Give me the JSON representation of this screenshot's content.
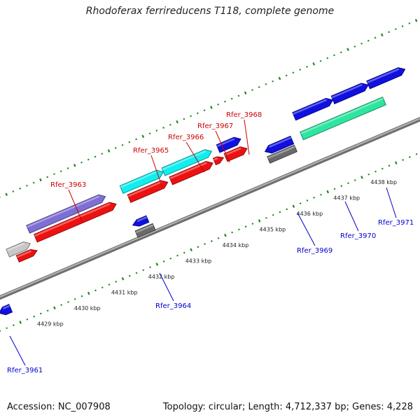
{
  "title": "Rhodoferax ferrireducens T118, complete genome",
  "footer": {
    "accession": "Accession: NC_007908",
    "info": "Topology: circular; Length: 4,712,337 bp; Genes: 4,228"
  },
  "colors": {
    "backbone": "#8a8a8a",
    "ticks": "#1a8a1a",
    "plus_label": "#cc0000",
    "minus_label": "#0000cc",
    "blue": "#1010e0",
    "red": "#ee1111",
    "cyan": "#11eeee",
    "purple": "#7d6fd6",
    "grey": "#6a6a6a",
    "lightgrey": "#c8c8c8",
    "seagreen": "#2ee5a0"
  },
  "scale_labels": [
    {
      "kbp": 4429,
      "text": "4429 kbp"
    },
    {
      "kbp": 4430,
      "text": "4430 kbp"
    },
    {
      "kbp": 4431,
      "text": "4431 kbp"
    },
    {
      "kbp": 4432,
      "text": "4432 kbp"
    },
    {
      "kbp": 4433,
      "text": "4433 kbp"
    },
    {
      "kbp": 4434,
      "text": "4434 kbp"
    },
    {
      "kbp": 4435,
      "text": "4435 kbp"
    },
    {
      "kbp": 4436,
      "text": "4436 kbp"
    },
    {
      "kbp": 4437,
      "text": "4437 kbp"
    },
    {
      "kbp": 4438,
      "text": "4438 kbp"
    }
  ],
  "gene_labels": [
    {
      "text": "Rfer_3961",
      "strand": "minus"
    },
    {
      "text": "Rfer_3963",
      "strand": "plus"
    },
    {
      "text": "Rfer_3964",
      "strand": "minus"
    },
    {
      "text": "Rfer_3965",
      "strand": "plus"
    },
    {
      "text": "Rfer_3966",
      "strand": "plus"
    },
    {
      "text": "Rfer_3967",
      "strand": "plus"
    },
    {
      "text": "Rfer_3968",
      "strand": "plus"
    },
    {
      "text": "Rfer_3969",
      "strand": "minus"
    },
    {
      "text": "Rfer_3970",
      "strand": "minus"
    },
    {
      "text": "Rfer_3971",
      "strand": "minus"
    }
  ]
}
